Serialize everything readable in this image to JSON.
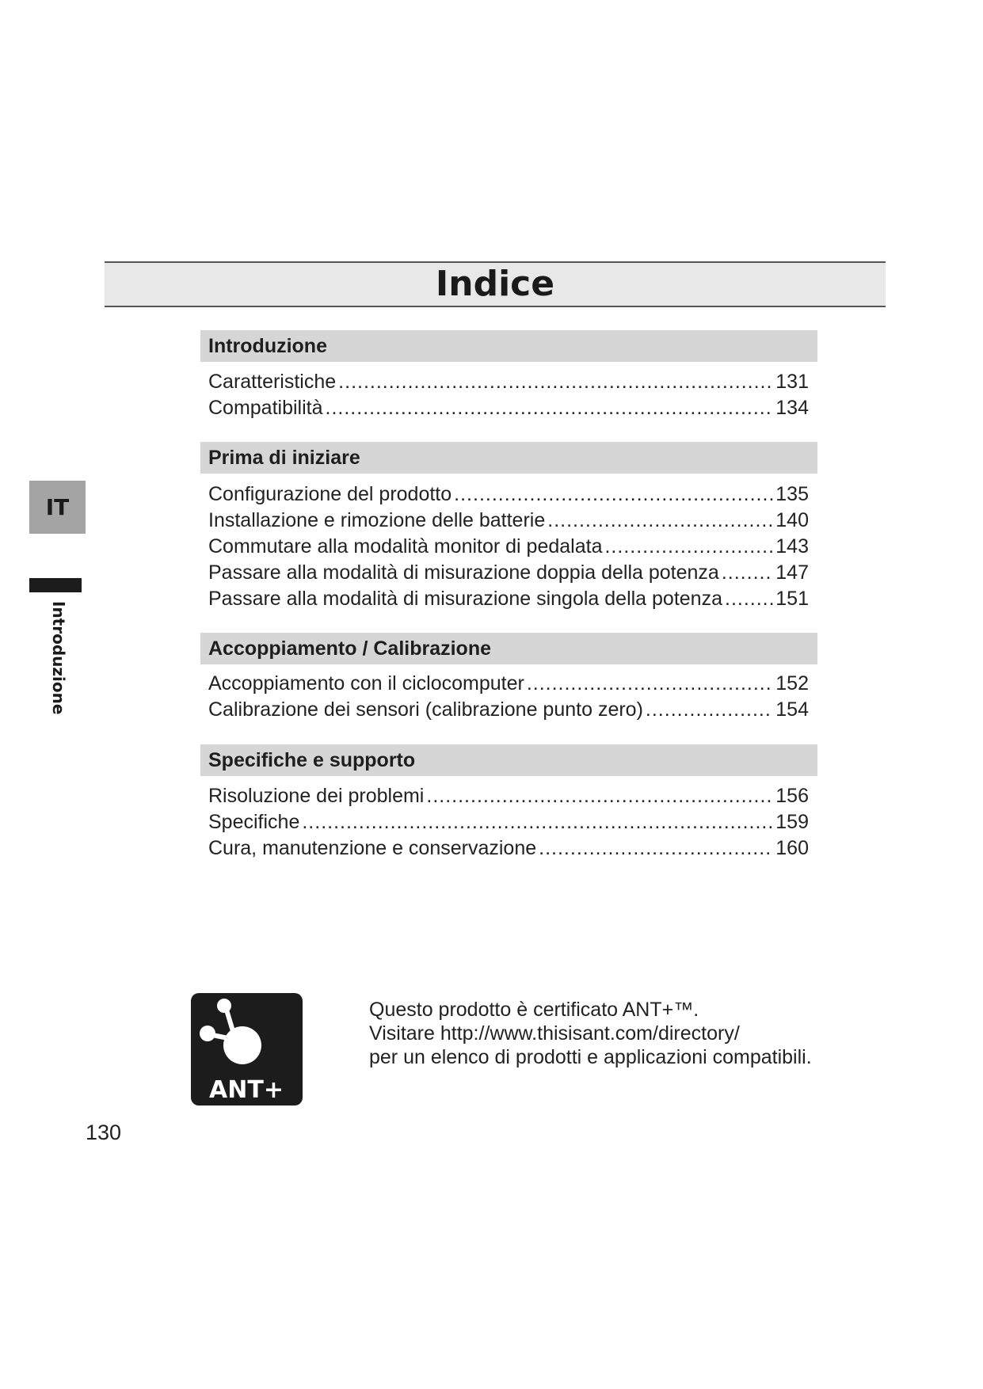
{
  "title": "Indice",
  "side_tab": {
    "language": "IT",
    "chapter": "Introduzione"
  },
  "sections": [
    {
      "heading": "Introduzione",
      "entries": [
        {
          "label": "Caratteristiche",
          "page": "131"
        },
        {
          "label": "Compatibilità",
          "page": "134"
        }
      ]
    },
    {
      "heading": "Prima di iniziare",
      "entries": [
        {
          "label": "Configurazione del prodotto",
          "page": "135"
        },
        {
          "label": "Installazione e rimozione delle batterie",
          "page": "140"
        },
        {
          "label": "Commutare alla modalità monitor di pedalata",
          "page": "143"
        },
        {
          "label": "Passare alla modalità di misurazione doppia della potenza",
          "page": "147"
        },
        {
          "label": "Passare alla modalità di misurazione singola della potenza",
          "page": "151"
        }
      ]
    },
    {
      "heading": "Accoppiamento / Calibrazione",
      "entries": [
        {
          "label": "Accoppiamento con il ciclocomputer",
          "page": "152"
        },
        {
          "label": "Calibrazione dei sensori (calibrazione punto zero)",
          "page": "154"
        }
      ]
    },
    {
      "heading": "Specifiche e supporto",
      "entries": [
        {
          "label": "Risoluzione dei problemi",
          "page": "156"
        },
        {
          "label": "Specifiche",
          "page": "159"
        },
        {
          "label": "Cura, manutenzione e conservazione",
          "page": "160"
        }
      ]
    }
  ],
  "ant": {
    "logo_text": "ANT+",
    "lines": [
      "Questo prodotto è certificato ANT+™.",
      "Visitare http://www.thisisant.com/directory/",
      "per un elenco di prodotti e applicazioni compatibili."
    ]
  },
  "page_number": "130"
}
